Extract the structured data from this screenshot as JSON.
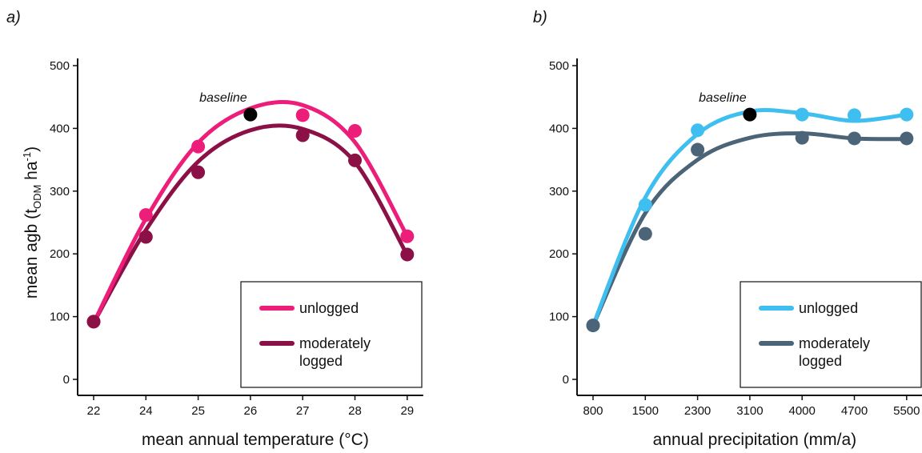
{
  "shared": {
    "ylabel_main": "mean agb (t",
    "ylabel_sub": "ODM",
    "ylabel_unit": " ha",
    "ylabel_sup": "-1",
    "ylabel_close": ")"
  },
  "chart_data": [
    {
      "panel_label": "a)",
      "type": "scatter",
      "xlabel": "mean annual temperature (°C)",
      "x_ticks": [
        "22",
        "24",
        "25",
        "26",
        "27",
        "28",
        "29"
      ],
      "y_ticks": [
        "0",
        "100",
        "200",
        "300",
        "400",
        "500"
      ],
      "ylim": [
        0,
        500
      ],
      "annotation": {
        "text": "baseline",
        "x": "26",
        "y": 422
      },
      "legend": {
        "placement": "bottom-right",
        "entries": [
          "unlogged",
          "moderately\nlogged"
        ]
      },
      "series": [
        {
          "name": "unlogged",
          "color": "#ed1e79",
          "points": [
            {
              "x": "22",
              "y": 92
            },
            {
              "x": "24",
              "y": 262
            },
            {
              "x": "25",
              "y": 371
            },
            {
              "x": "26",
              "y": 422
            },
            {
              "x": "27",
              "y": 421
            },
            {
              "x": "28",
              "y": 396
            },
            {
              "x": "29",
              "y": 228
            }
          ],
          "fit": [
            {
              "x": "22",
              "y": 90
            },
            {
              "x": "24",
              "y": 256
            },
            {
              "x": "25",
              "y": 377
            },
            {
              "x": "26",
              "y": 432
            },
            {
              "x": "27",
              "y": 437
            },
            {
              "x": "28",
              "y": 378
            },
            {
              "x": "29",
              "y": 228
            }
          ]
        },
        {
          "name": "moderately logged",
          "color": "#8b1045",
          "points": [
            {
              "x": "22",
              "y": 92
            },
            {
              "x": "24",
              "y": 227
            },
            {
              "x": "25",
              "y": 330
            },
            {
              "x": "26",
              "y": 422
            },
            {
              "x": "27",
              "y": 389
            },
            {
              "x": "28",
              "y": 349
            },
            {
              "x": "29",
              "y": 199
            }
          ],
          "fit": [
            {
              "x": "22",
              "y": 90
            },
            {
              "x": "24",
              "y": 238
            },
            {
              "x": "25",
              "y": 347
            },
            {
              "x": "26",
              "y": 397
            },
            {
              "x": "27",
              "y": 399
            },
            {
              "x": "28",
              "y": 346
            },
            {
              "x": "29",
              "y": 198
            }
          ]
        }
      ],
      "baseline_point": {
        "x": "26",
        "y": 422,
        "color": "#000000"
      }
    },
    {
      "panel_label": "b)",
      "type": "scatter",
      "xlabel": "annual precipitation (mm/a)",
      "x_ticks": [
        "800",
        "1500",
        "2300",
        "3100",
        "4000",
        "4700",
        "5500"
      ],
      "y_ticks": [
        "0",
        "100",
        "200",
        "300",
        "400",
        "500"
      ],
      "ylim": [
        0,
        500
      ],
      "annotation": {
        "text": "baseline",
        "x": "3100",
        "y": 422
      },
      "legend": {
        "placement": "bottom-right",
        "entries": [
          "unlogged",
          "moderately\nlogged"
        ]
      },
      "series": [
        {
          "name": "unlogged",
          "color": "#3fbfef",
          "points": [
            {
              "x": "800",
              "y": 86
            },
            {
              "x": "1500",
              "y": 278
            },
            {
              "x": "2300",
              "y": 397
            },
            {
              "x": "3100",
              "y": 422
            },
            {
              "x": "4000",
              "y": 422
            },
            {
              "x": "4700",
              "y": 421
            },
            {
              "x": "5500",
              "y": 422
            }
          ],
          "fit": [
            {
              "x": "800",
              "y": 86
            },
            {
              "x": "1500",
              "y": 290
            },
            {
              "x": "2300",
              "y": 391
            },
            {
              "x": "3100",
              "y": 427
            },
            {
              "x": "4000",
              "y": 424
            },
            {
              "x": "4700",
              "y": 412
            },
            {
              "x": "5500",
              "y": 422
            }
          ]
        },
        {
          "name": "moderately logged",
          "color": "#4b6478",
          "points": [
            {
              "x": "800",
              "y": 86
            },
            {
              "x": "1500",
              "y": 232
            },
            {
              "x": "2300",
              "y": 366
            },
            {
              "x": "3100",
              "y": 422
            },
            {
              "x": "4000",
              "y": 385
            },
            {
              "x": "4700",
              "y": 384
            },
            {
              "x": "5500",
              "y": 384
            }
          ],
          "fit": [
            {
              "x": "800",
              "y": 86
            },
            {
              "x": "1500",
              "y": 265
            },
            {
              "x": "2300",
              "y": 350
            },
            {
              "x": "3100",
              "y": 385
            },
            {
              "x": "4000",
              "y": 392
            },
            {
              "x": "4700",
              "y": 384
            },
            {
              "x": "5500",
              "y": 383
            }
          ]
        }
      ],
      "baseline_point": {
        "x": "3100",
        "y": 422,
        "color": "#000000"
      }
    }
  ]
}
